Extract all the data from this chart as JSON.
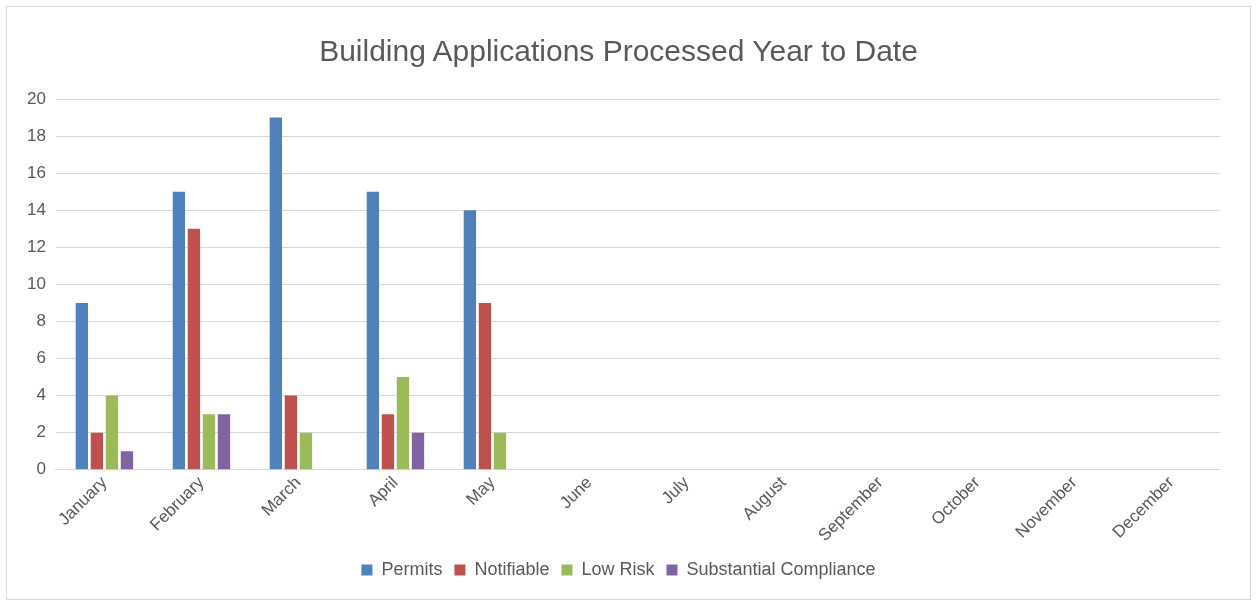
{
  "chart_data": {
    "type": "bar",
    "title": "Building Applications Processed Year to Date",
    "categories": [
      "January",
      "February",
      "March",
      "April",
      "May",
      "June",
      "July",
      "August",
      "September",
      "October",
      "November",
      "December"
    ],
    "series": [
      {
        "name": "Permits",
        "color": "#4f81bd",
        "values": [
          9,
          15,
          19,
          15,
          14,
          null,
          null,
          null,
          null,
          null,
          null,
          null
        ]
      },
      {
        "name": "Notifiable",
        "color": "#c0504d",
        "values": [
          2,
          13,
          4,
          3,
          9,
          null,
          null,
          null,
          null,
          null,
          null,
          null
        ]
      },
      {
        "name": "Low Risk",
        "color": "#9bbb59",
        "values": [
          4,
          3,
          2,
          5,
          2,
          null,
          null,
          null,
          null,
          null,
          null,
          null
        ]
      },
      {
        "name": "Substantial Compliance",
        "color": "#8064a2",
        "values": [
          1,
          3,
          0,
          2,
          0,
          null,
          null,
          null,
          null,
          null,
          null,
          null
        ]
      }
    ],
    "ylim": [
      0,
      20
    ],
    "yticks": [
      0,
      2,
      4,
      6,
      8,
      10,
      12,
      14,
      16,
      18,
      20
    ],
    "grid": "y",
    "legend": "bottom"
  }
}
